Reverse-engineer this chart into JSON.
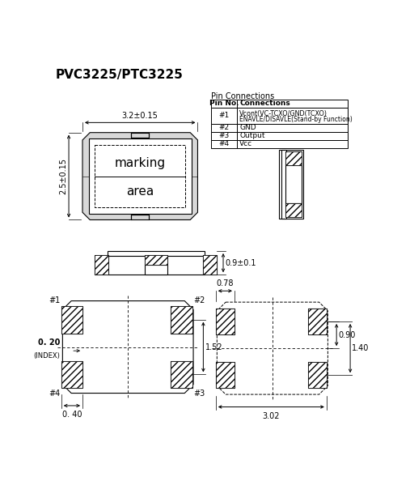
{
  "title": "PVC3225/PTC3225",
  "bg": "#ffffff",
  "table_title": "Pin Connections",
  "pin_rows": [
    [
      "#1",
      "Vcont(VC-TCXO/GND(TCXO)",
      "ENAVLE/DISAVLE(Stand-by Function)"
    ],
    [
      "#2",
      "GND",
      ""
    ],
    [
      "#3",
      "Output",
      ""
    ],
    [
      "#4",
      "Vcc",
      ""
    ]
  ],
  "dim_top_width": "3.2±0.15",
  "dim_left_height": "2.5±0.15",
  "dim_side_height": "0.9±0.1",
  "dim_078": "0.78",
  "dim_090": "0.90",
  "dim_140": "1.40",
  "dim_302": "3.02",
  "dim_020": "0. 20",
  "dim_index": "(INDEX)",
  "dim_040": "0. 40",
  "dim_152": "1.52",
  "mark1": "marking",
  "mark2": "area"
}
